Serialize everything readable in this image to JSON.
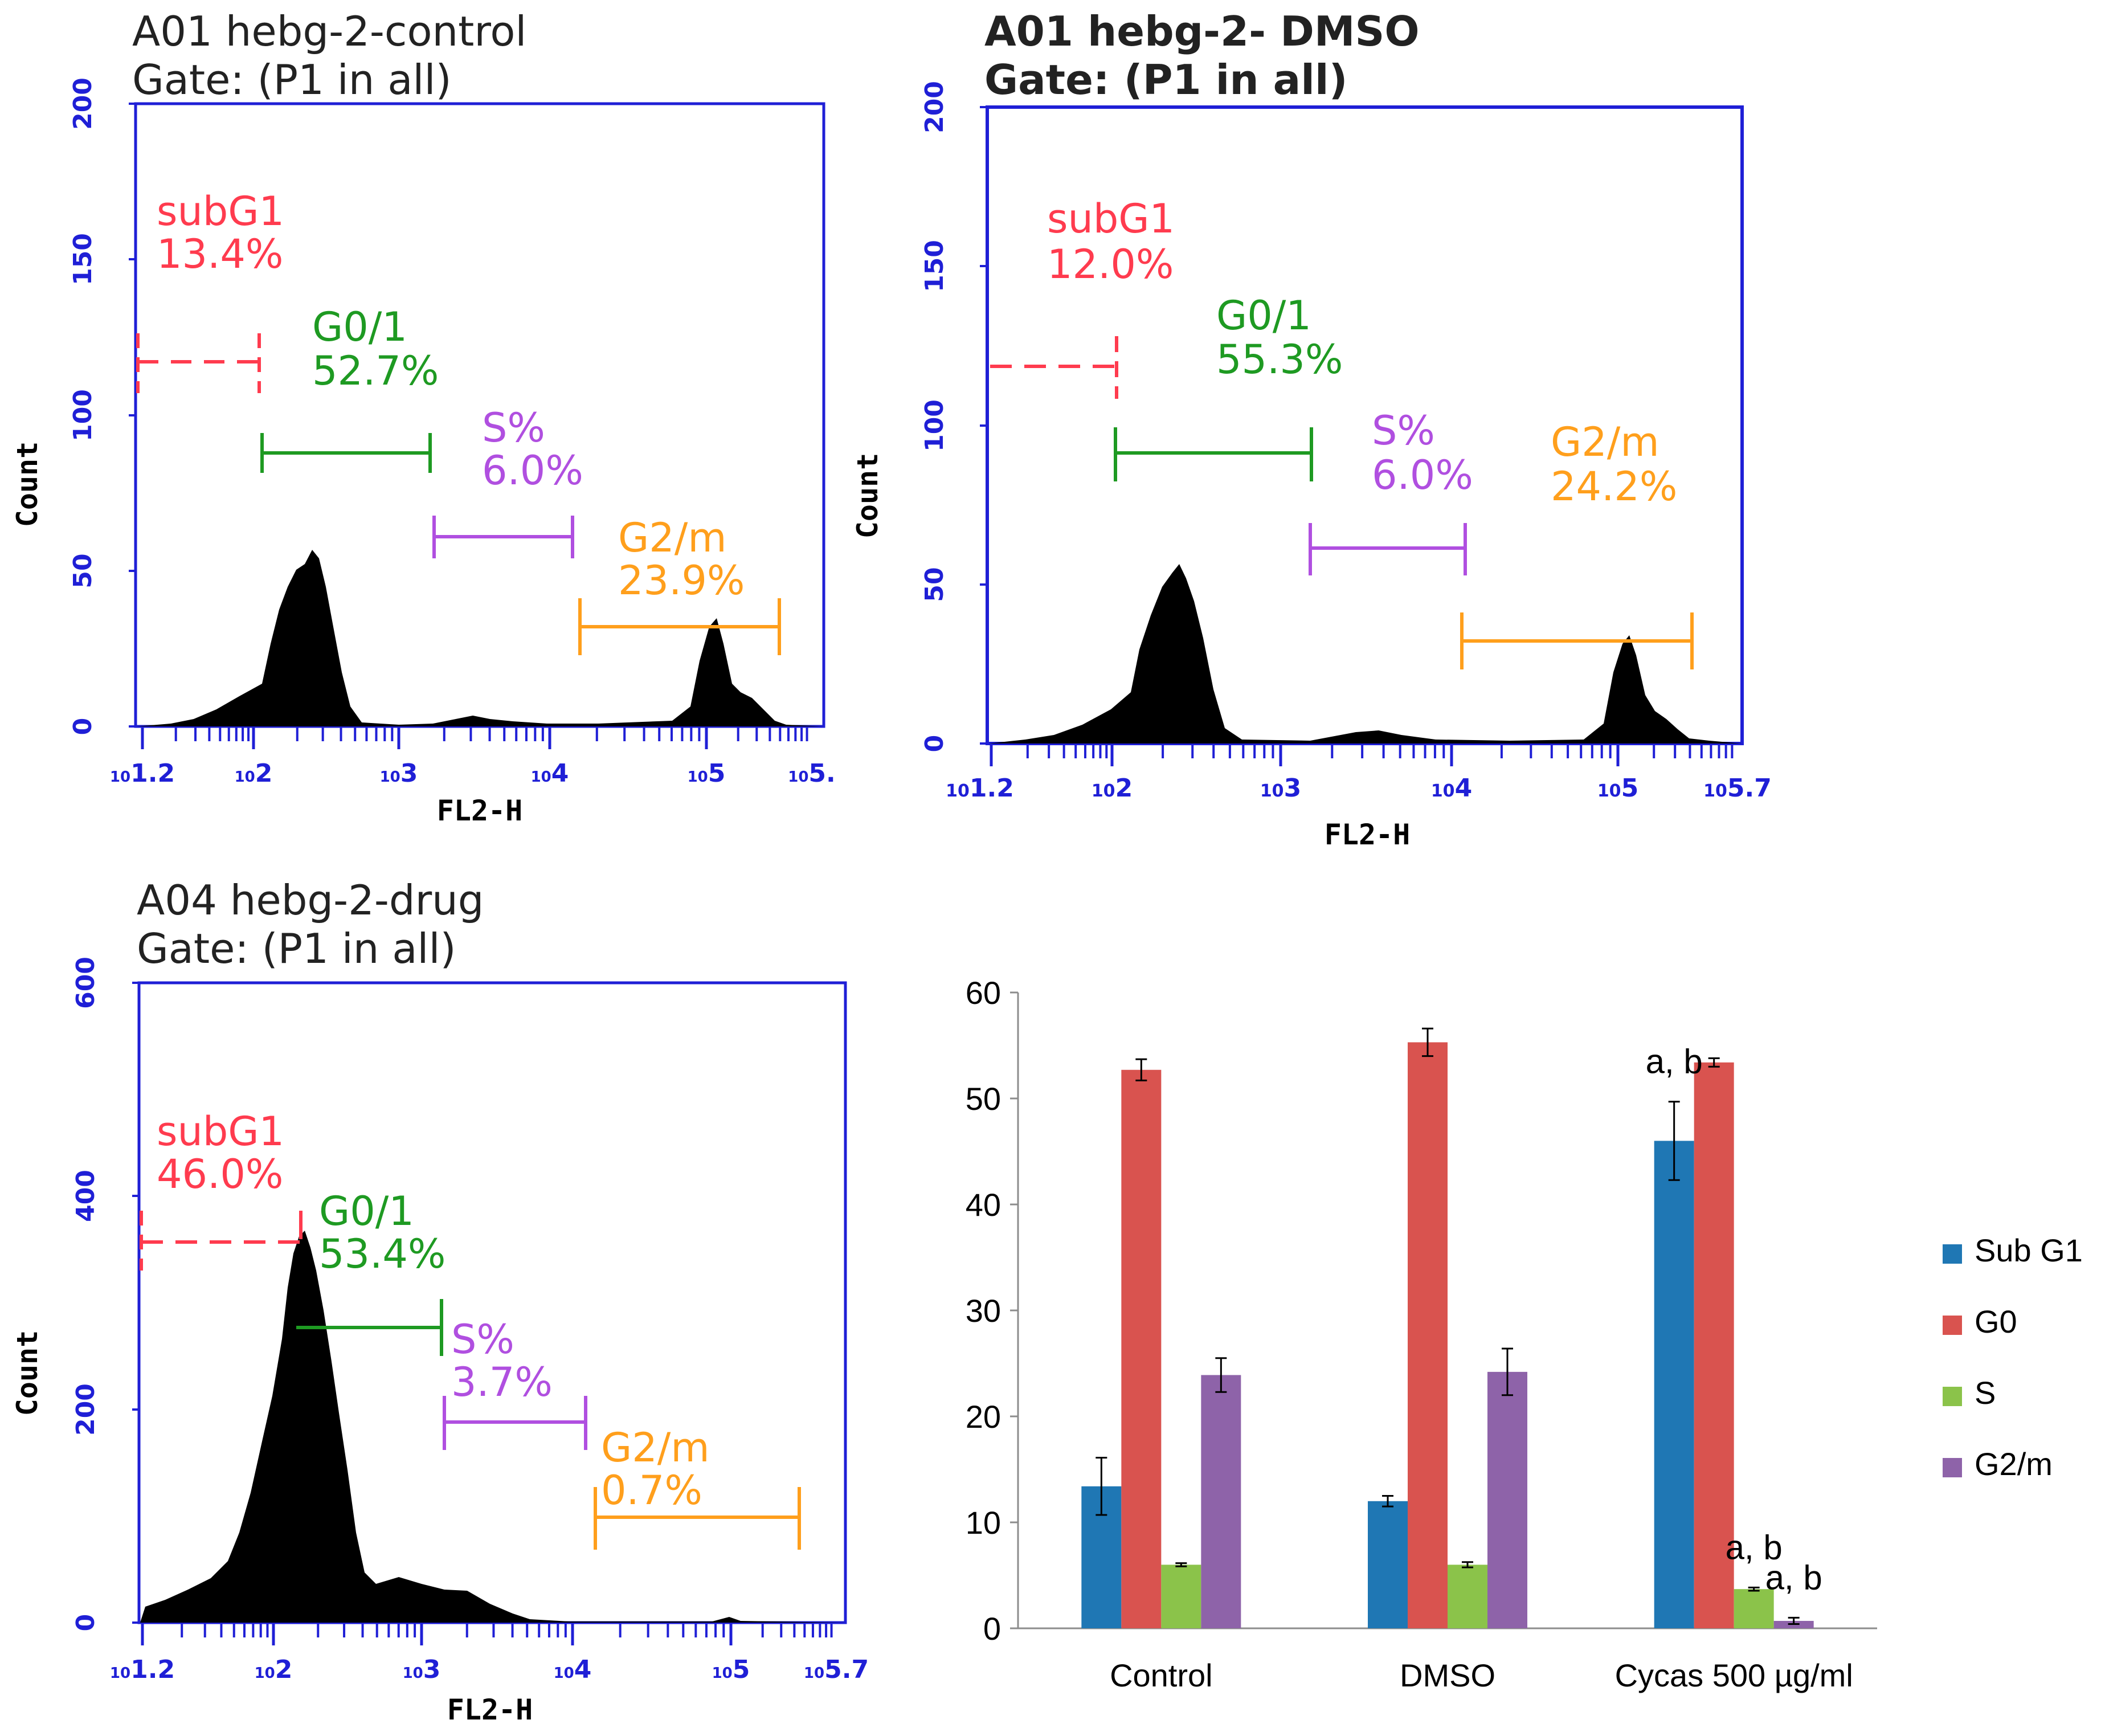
{
  "colors": {
    "axis_blue": "#1f1fd6",
    "subg1": "#ff3b4e",
    "g01": "#1e9a22",
    "s": "#b04fe0",
    "g2m": "#ff9f1c"
  },
  "histograms": [
    {
      "title": "A01 hebg-2-control",
      "gate": "Gate: (P1 in all)",
      "ylabel": "Count",
      "xlabel": "FL2-H",
      "yticks": [
        "0",
        "50",
        "100",
        "150",
        "200"
      ],
      "xticks": [
        "10 1.2",
        "10 2",
        "10 3",
        "10 4",
        "10 5",
        "10 5."
      ],
      "xtick_base": "10",
      "xtick_exp": [
        "1.2",
        "2",
        "3",
        "4",
        "5",
        "5."
      ],
      "gates": [
        {
          "name": "subG1",
          "percent": "13.4%"
        },
        {
          "name": "G0/1",
          "percent": "52.7%"
        },
        {
          "name": "S%",
          "percent": "6.0%"
        },
        {
          "name": "G2/m",
          "percent": "23.9%"
        }
      ]
    },
    {
      "title": "A01 hebg-2- DMSO",
      "gate": "Gate: (P1 in all)",
      "ylabel": "Count",
      "xlabel": "FL2-H",
      "yticks": [
        "0",
        "50",
        "100",
        "150",
        "200"
      ],
      "xtick_base": "10",
      "xtick_exp": [
        "1.2",
        "2",
        "3",
        "4",
        "5",
        "5.7"
      ],
      "gates": [
        {
          "name": "subG1",
          "percent": "12.0%"
        },
        {
          "name": "G0/1",
          "percent": "55.3%"
        },
        {
          "name": "S%",
          "percent": "6.0%"
        },
        {
          "name": "G2/m",
          "percent": "24.2%"
        }
      ]
    },
    {
      "title": "A04 hebg-2-drug",
      "gate": "Gate: (P1 in all)",
      "ylabel": "Count",
      "xlabel": "FL2-H",
      "yticks": [
        "0",
        "200",
        "400",
        "600"
      ],
      "xtick_base": "10",
      "xtick_exp": [
        "1.2",
        "2",
        "3",
        "4",
        "5",
        "5.7"
      ],
      "gates": [
        {
          "name": "subG1",
          "percent": "46.0%"
        },
        {
          "name": "G0/1",
          "percent": "53.4%"
        },
        {
          "name": "S%",
          "percent": "3.7%"
        },
        {
          "name": "G2/m",
          "percent": "0.7%"
        }
      ]
    }
  ],
  "chart_data": {
    "type": "bar",
    "title": "",
    "xlabel": "",
    "ylabel": "",
    "ylim": [
      0,
      60
    ],
    "yticks": [
      0,
      10,
      20,
      30,
      40,
      50,
      60
    ],
    "categories": [
      "Control",
      "DMSO",
      "Cycas 500 µg/ml"
    ],
    "series": [
      {
        "name": "Sub G1",
        "color": "#1f77b4",
        "values": [
          13.4,
          12.0,
          46.0
        ],
        "errors": [
          2.7,
          0.5,
          3.7
        ]
      },
      {
        "name": "G0",
        "color": "#d9534f",
        "values": [
          52.7,
          55.3,
          53.4
        ],
        "errors": [
          1.0,
          1.3,
          0.4
        ]
      },
      {
        "name": "S",
        "color": "#8bc34a",
        "values": [
          6.0,
          6.0,
          3.7
        ],
        "errors": [
          0.15,
          0.25,
          0.15
        ]
      },
      {
        "name": "G2/m",
        "color": "#8e63a9",
        "values": [
          23.9,
          24.2,
          0.7
        ],
        "errors": [
          1.6,
          2.2,
          0.3
        ]
      }
    ],
    "legend_position": "right",
    "annotations": [
      {
        "text": "a, b",
        "category": "Cycas 500 µg/ml",
        "series": "Sub G1"
      },
      {
        "text": "a, b",
        "category": "Cycas 500 µg/ml",
        "series": "S"
      },
      {
        "text": "a, b",
        "category": "Cycas 500 µg/ml",
        "series": "G2/m"
      }
    ]
  }
}
